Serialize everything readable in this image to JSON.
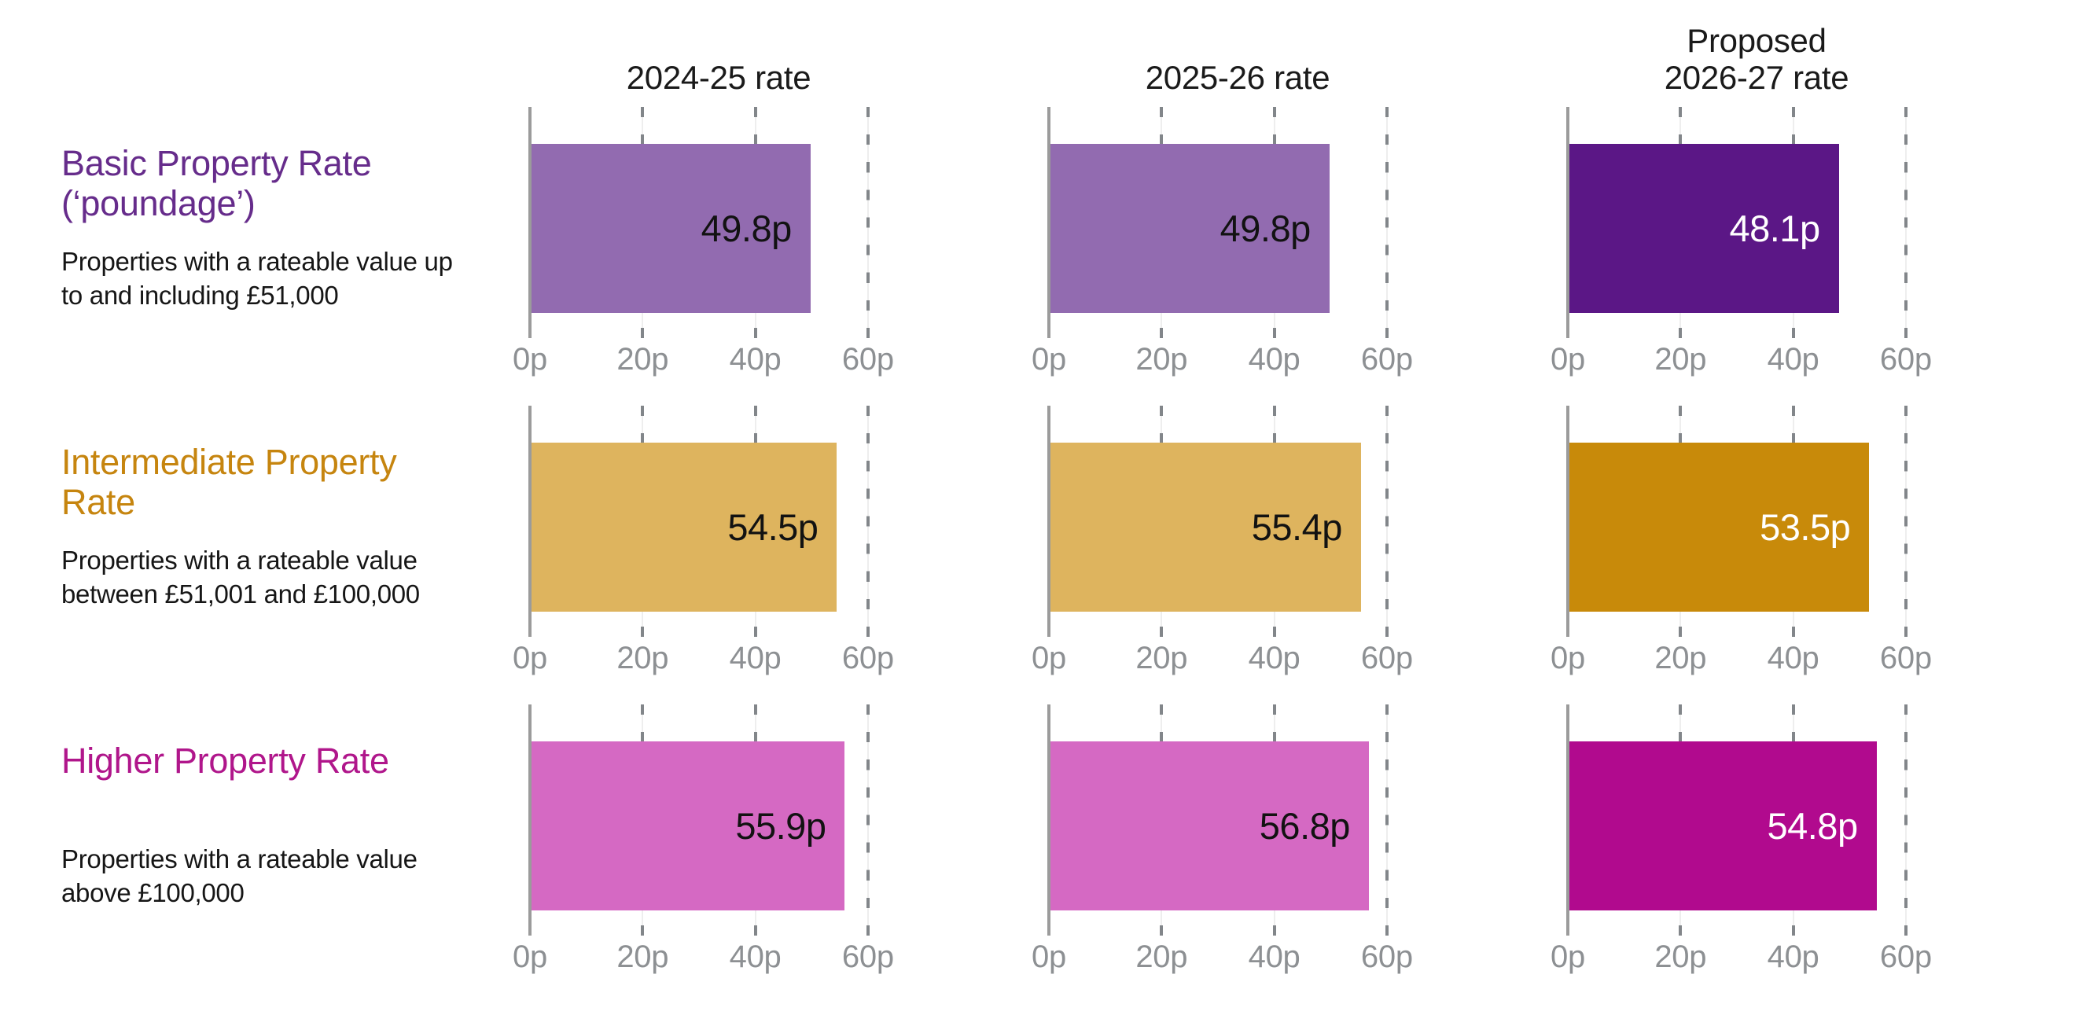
{
  "chart_data": {
    "type": "bar",
    "orientation": "horizontal",
    "unit_suffix": "p",
    "x_axis": {
      "tick_labels": [
        "0p",
        "20p",
        "40p",
        "60p"
      ],
      "tick_values": [
        0,
        20,
        40,
        60
      ],
      "max": 67,
      "grid": "dashed-vertical"
    },
    "style": {
      "axis_line": "#9B9B9B",
      "grid_dash": "#82868A",
      "grid_thin": "#DCDCDC",
      "tick_label": "#8D9093",
      "value_label_on_light": "#121212",
      "value_label_on_dark": "#FFFFFF"
    },
    "columns": [
      {
        "header": "2024-25 rate",
        "shade": "light"
      },
      {
        "header": "2025-26 rate",
        "shade": "light"
      },
      {
        "header": "Proposed\n2026-27 rate",
        "shade": "dark"
      }
    ],
    "rows": [
      {
        "title": "Basic Property Rate (‘poundage’)",
        "description": "Properties with a rateable value up to and including £51,000",
        "title_color": "#662C8B",
        "bar_light": "#926BB0",
        "bar_dark": "#5B1786",
        "values": [
          49.8,
          49.8,
          48.1
        ],
        "labels": [
          "49.8p",
          "49.8p",
          "48.1p"
        ]
      },
      {
        "title": "Intermediate Property Rate",
        "description": "Properties with a rateable value between £51,001 and £100,000",
        "title_color": "#C6850F",
        "bar_light": "#DEB45E",
        "bar_dark": "#C88A0A",
        "values": [
          54.5,
          55.4,
          53.5
        ],
        "labels": [
          "54.5p",
          "55.4p",
          "53.5p"
        ]
      },
      {
        "title": "Higher Property Rate",
        "description": "Properties with a rateable value above £100,000",
        "title_color": "#B0168B",
        "bar_light": "#D569C3",
        "bar_dark": "#B10A8E",
        "values": [
          55.9,
          56.8,
          54.8
        ],
        "labels": [
          "55.9p",
          "56.8p",
          "54.8p"
        ]
      }
    ]
  }
}
